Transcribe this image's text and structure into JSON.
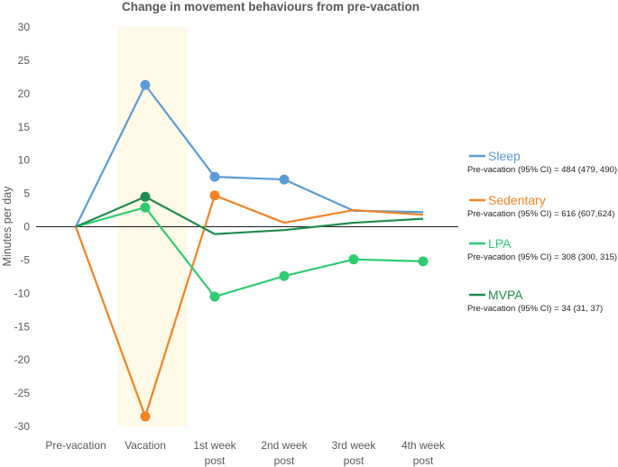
{
  "chart_data": {
    "type": "line",
    "title": "Change in movement behaviours from pre-vacation",
    "xlabel": "",
    "ylabel": "Minutes per day",
    "categories": [
      "Pre-vacation",
      "Vacation",
      "1st week\npost",
      "2nd week\npost",
      "3rd week\npost",
      "4th week\npost"
    ],
    "ylim": [
      -30,
      30
    ],
    "yticks": [
      30,
      25,
      20,
      15,
      10,
      5,
      0,
      -5,
      -10,
      -15,
      -20,
      -25,
      -30
    ],
    "grid": false,
    "highlight_category": "Vacation",
    "highlight_color": "#FFF9E8",
    "legend_position": "right",
    "series": [
      {
        "name": "Sleep",
        "color": "#5B9BD5",
        "values": [
          0,
          21.3,
          7.5,
          7.1,
          2.4,
          2.2
        ],
        "markers": [
          false,
          true,
          true,
          true,
          false,
          false
        ],
        "subtitle": "Pre-vacation (95% CI) = 484 (479, 490)"
      },
      {
        "name": "Sedentary",
        "color": "#F28322",
        "values": [
          0,
          -28.5,
          4.7,
          0.6,
          2.5,
          1.8
        ],
        "markers": [
          false,
          true,
          true,
          false,
          false,
          false
        ],
        "subtitle": "Pre-vacation (95% CI) = 616 (607,624)"
      },
      {
        "name": "LPA",
        "color": "#2ECC71",
        "values": [
          0,
          2.9,
          -10.5,
          -7.4,
          -4.9,
          -5.2
        ],
        "markers": [
          false,
          true,
          true,
          true,
          true,
          true
        ],
        "subtitle": "Pre-vacation (95% CI) = 308 (300, 315)"
      },
      {
        "name": "MVPA",
        "color": "#1E8C4E",
        "values": [
          0,
          4.5,
          -1.1,
          -0.5,
          0.6,
          1.2
        ],
        "markers": [
          false,
          true,
          false,
          false,
          false,
          false
        ],
        "subtitle": "Pre-vacation (95% CI) = 34 (31, 37)"
      }
    ]
  }
}
